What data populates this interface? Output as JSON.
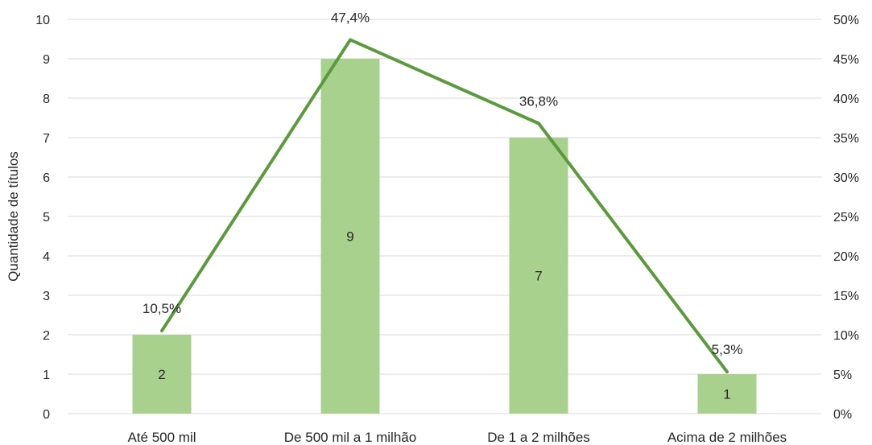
{
  "chart_data": {
    "type": "bar",
    "categories": [
      "Até 500 mil",
      "De 500 mil a 1 milhão",
      "De 1 a 2 milhões",
      "Acima de 2 milhões"
    ],
    "series": [
      {
        "type": "bar",
        "axis": "left",
        "values": [
          2,
          9,
          7,
          1
        ],
        "color": "#a9d18e"
      },
      {
        "type": "line",
        "axis": "right",
        "values": [
          10.5,
          47.4,
          36.8,
          5.3
        ],
        "color": "#5b9a3c"
      }
    ],
    "bar_labels": [
      "2",
      "9",
      "7",
      "1"
    ],
    "line_labels": [
      "10,5%",
      "47,4%",
      "36,8%",
      "5,3%"
    ],
    "ylabel": "Quantidade de títulos",
    "ylim": [
      0,
      10
    ],
    "y_ticks": [
      "0",
      "1",
      "2",
      "3",
      "4",
      "5",
      "6",
      "7",
      "8",
      "9",
      "10"
    ],
    "y2lim": [
      0,
      50
    ],
    "y2_ticks": [
      "0%",
      "5%",
      "10%",
      "15%",
      "20%",
      "25%",
      "30%",
      "35%",
      "40%",
      "45%",
      "50%"
    ],
    "grid": true,
    "legend": "none"
  }
}
